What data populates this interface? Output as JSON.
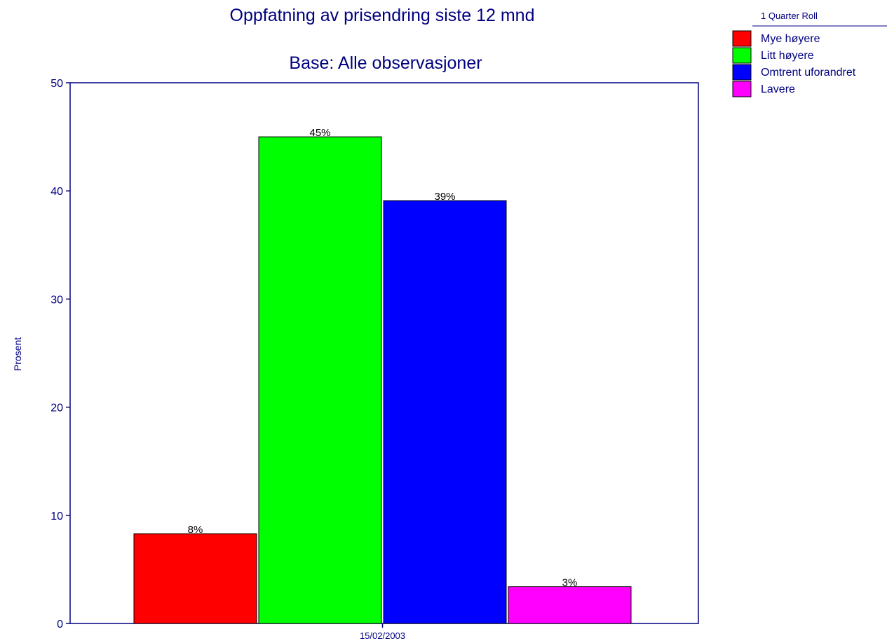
{
  "chart_data": {
    "type": "bar",
    "title": "Oppfatning av prisendring siste 12 mnd",
    "subtitle": "Base: Alle observasjoner",
    "xlabel": "",
    "ylabel": "Prosent",
    "categories": [
      "15/02/2003"
    ],
    "series": [
      {
        "name": "Mye høyere",
        "values": [
          8.3
        ],
        "label": "8%",
        "color": "#ff0000"
      },
      {
        "name": "Litt høyere",
        "values": [
          45.0
        ],
        "label": "45%",
        "color": "#00ff00"
      },
      {
        "name": "Omtrent uforandret",
        "values": [
          39.1
        ],
        "label": "39%",
        "color": "#0000ff"
      },
      {
        "name": "Lavere",
        "values": [
          3.4
        ],
        "label": "3%",
        "color": "#ff00ff"
      }
    ],
    "ylim": [
      0,
      50
    ],
    "yticks": [
      0,
      10,
      20,
      30,
      40,
      50
    ],
    "grid": false,
    "legend": {
      "title": "1 Quarter Roll",
      "position": "top-right"
    },
    "colors": {
      "text": "#000080",
      "axis": "#000080",
      "bar_border": "#000000"
    }
  }
}
